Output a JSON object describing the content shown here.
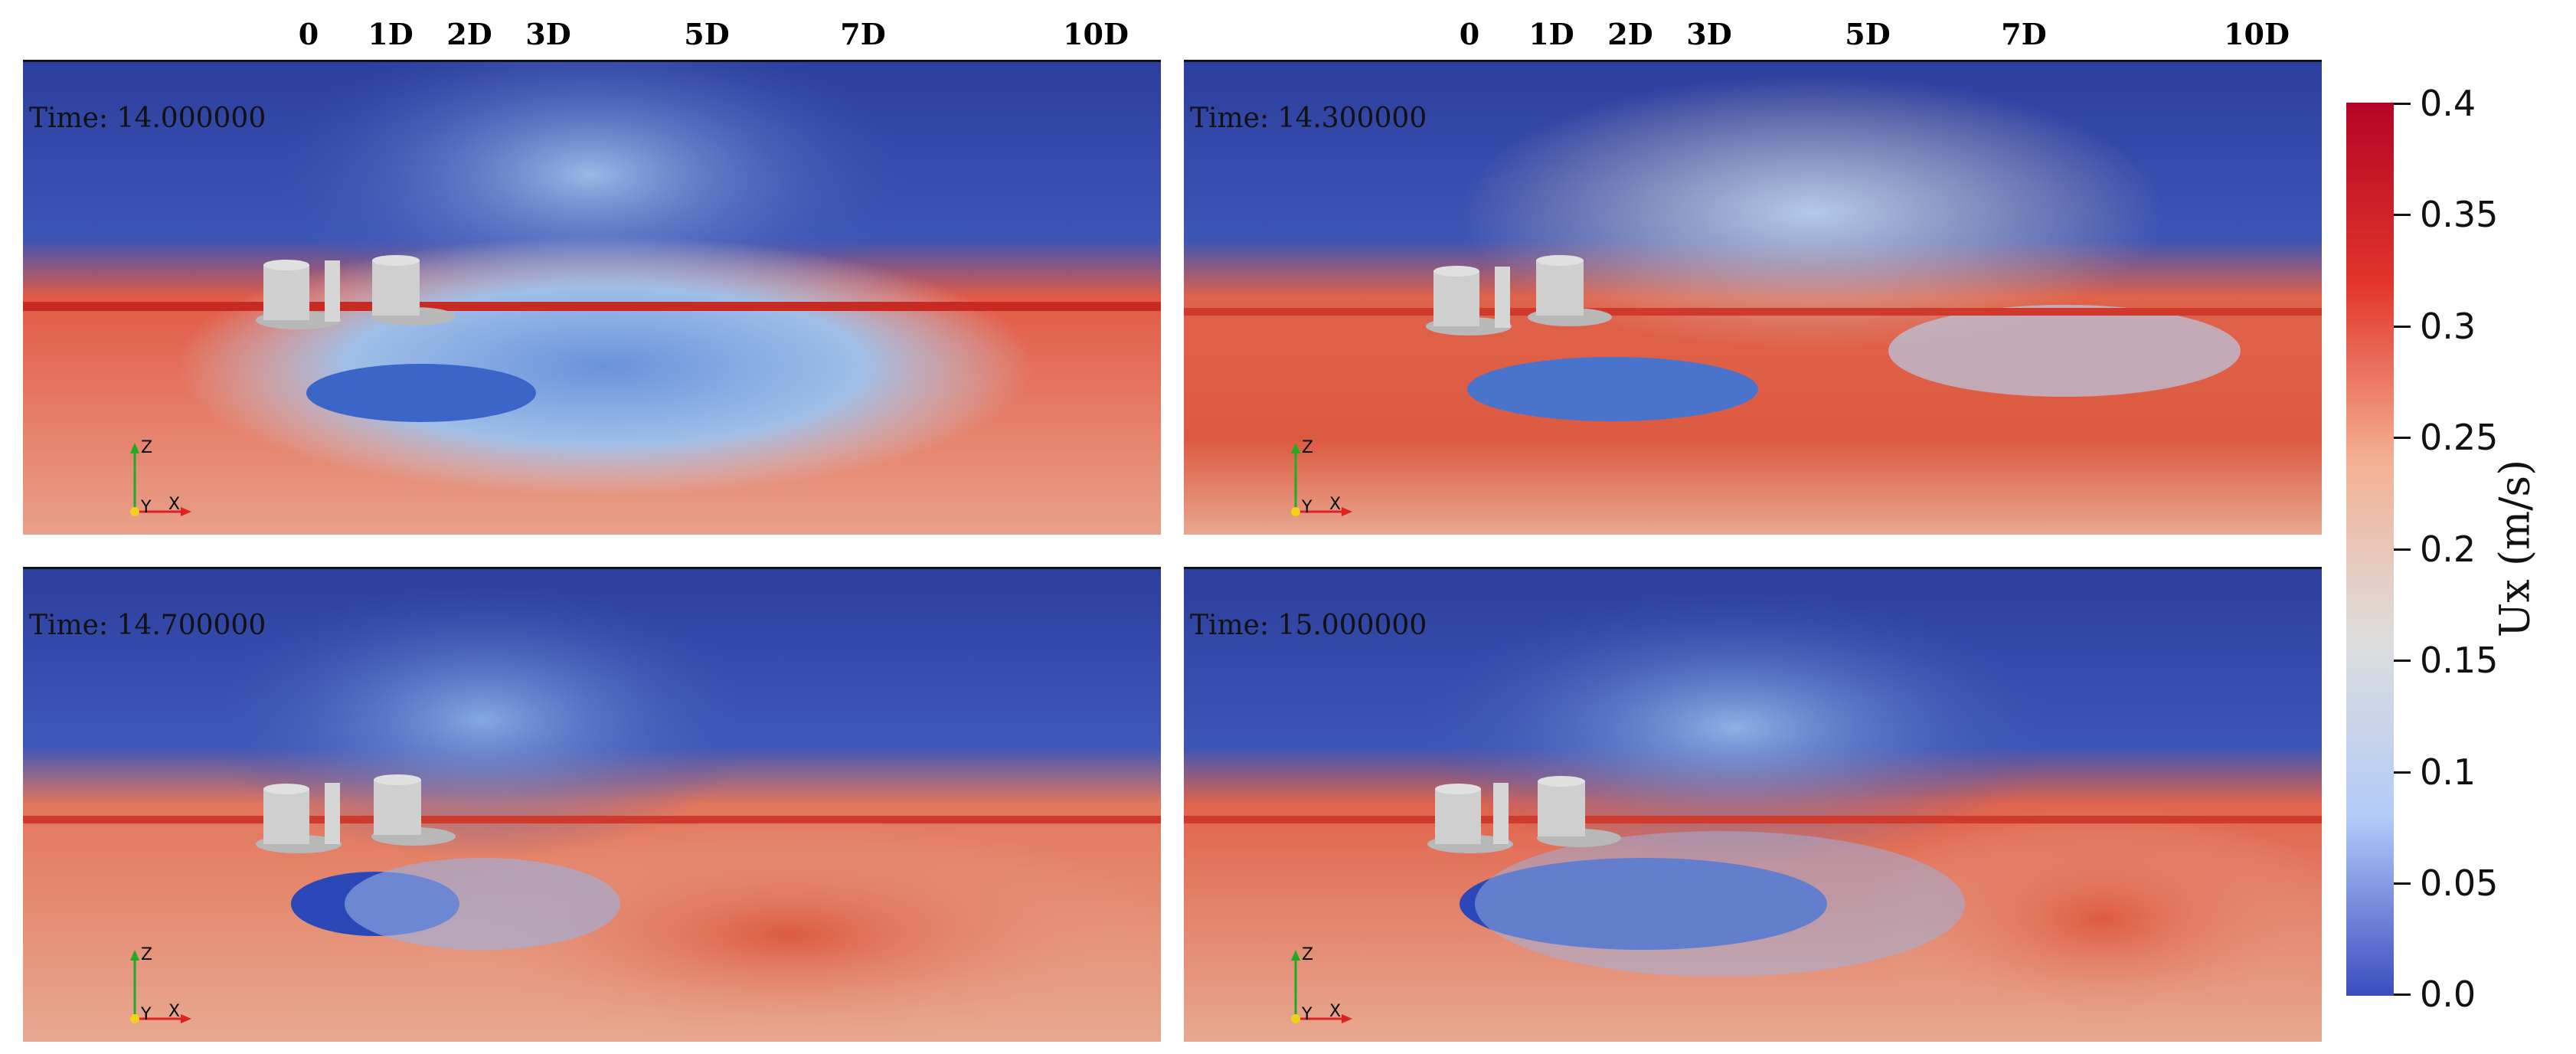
{
  "x_ticks": [
    "0",
    "1D",
    "2D",
    "3D",
    "5D",
    "7D",
    "10D"
  ],
  "panels": [
    {
      "time_label": "Time: 14.000000"
    },
    {
      "time_label": "Time: 14.300000"
    },
    {
      "time_label": "Time: 14.700000"
    },
    {
      "time_label": "Time: 15.000000"
    }
  ],
  "axes_triad": {
    "z": "Z",
    "y": "Y",
    "x": "X"
  },
  "colorbar": {
    "title": "Ux (m/s)",
    "labels": [
      "0.4",
      "0.35",
      "0.3",
      "0.25",
      "0.2",
      "0.15",
      "0.1",
      "0.05",
      "0.0"
    ],
    "colors": [
      "#3b4cc0",
      "#b2cbf9",
      "#dddddd",
      "#f4b092",
      "#e2342a",
      "#b40426"
    ]
  }
}
